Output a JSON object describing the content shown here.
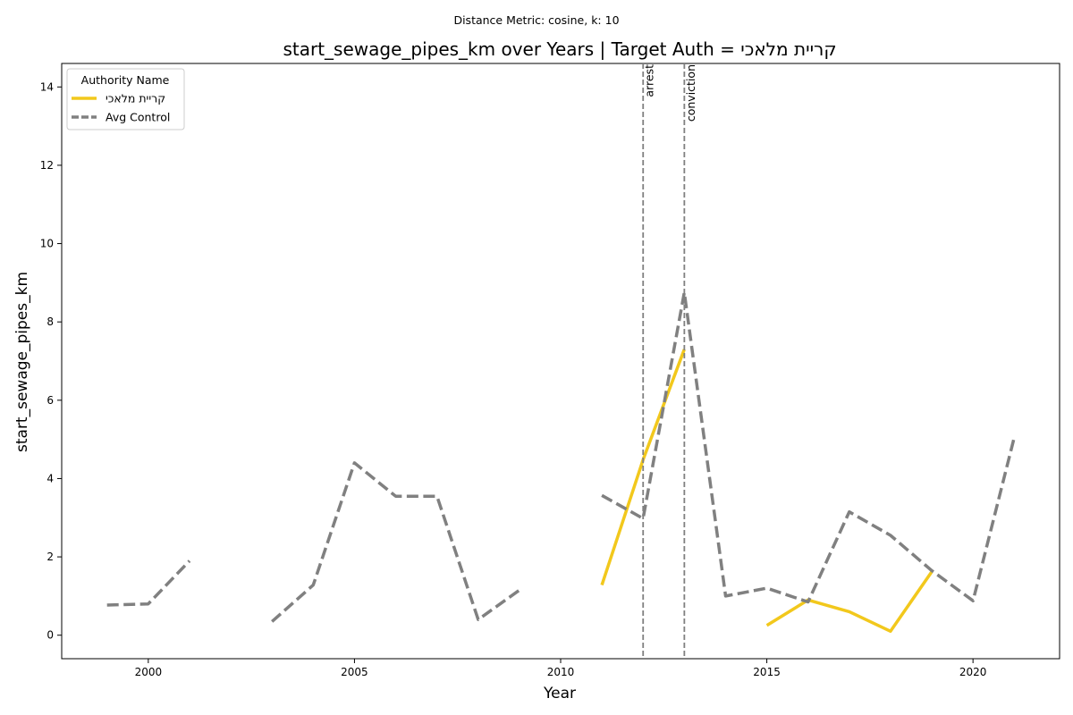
{
  "suptitle": "Distance Metric: cosine, k: 10",
  "chart_data": {
    "type": "line",
    "title": "start_sewage_pipes_km over Years | Target Auth = קריית מלאכי",
    "xlabel": "Year",
    "ylabel": "start_sewage_pipes_km",
    "xlim": [
      1997.9,
      2022.1
    ],
    "ylim": [
      -0.6,
      14.6
    ],
    "xticks": [
      2000,
      2005,
      2010,
      2015,
      2020
    ],
    "yticks": [
      0,
      2,
      4,
      6,
      8,
      10,
      12,
      14
    ],
    "grid": false,
    "legend": {
      "title": "Authority Name",
      "position": "upper-left",
      "entries": [
        "קריית מלאכי",
        "Avg Control"
      ]
    },
    "series": [
      {
        "name": "קריית מלאכי",
        "color": "#f2c81c",
        "style": "solid",
        "points": [
          [
            2011,
            1.28
          ],
          [
            2012,
            4.48
          ],
          [
            2013,
            7.3
          ],
          [
            2014,
            null
          ],
          [
            2015,
            0.25
          ],
          [
            2016,
            0.9
          ],
          [
            2017,
            0.6
          ],
          [
            2018,
            0.1
          ],
          [
            2019,
            1.62
          ]
        ]
      },
      {
        "name": "Avg Control",
        "color": "#808080",
        "style": "dashed",
        "points": [
          [
            1999,
            0.77
          ],
          [
            2000,
            0.8
          ],
          [
            2001,
            1.9
          ],
          [
            2002,
            null
          ],
          [
            2003,
            0.35
          ],
          [
            2004,
            1.28
          ],
          [
            2005,
            4.4
          ],
          [
            2006,
            3.55
          ],
          [
            2007,
            3.55
          ],
          [
            2008,
            0.4
          ],
          [
            2009,
            1.15
          ],
          [
            2010,
            null
          ],
          [
            2011,
            3.57
          ],
          [
            2012,
            2.98
          ],
          [
            2013,
            8.75
          ],
          [
            2014,
            1.0
          ],
          [
            2015,
            1.2
          ],
          [
            2016,
            0.85
          ],
          [
            2017,
            3.15
          ],
          [
            2018,
            2.55
          ],
          [
            2019,
            1.65
          ],
          [
            2020,
            0.88
          ],
          [
            2021,
            5.05
          ]
        ]
      }
    ],
    "vlines": [
      {
        "x": 2012,
        "label": "arrest"
      },
      {
        "x": 2013,
        "label": "conviction"
      }
    ]
  }
}
